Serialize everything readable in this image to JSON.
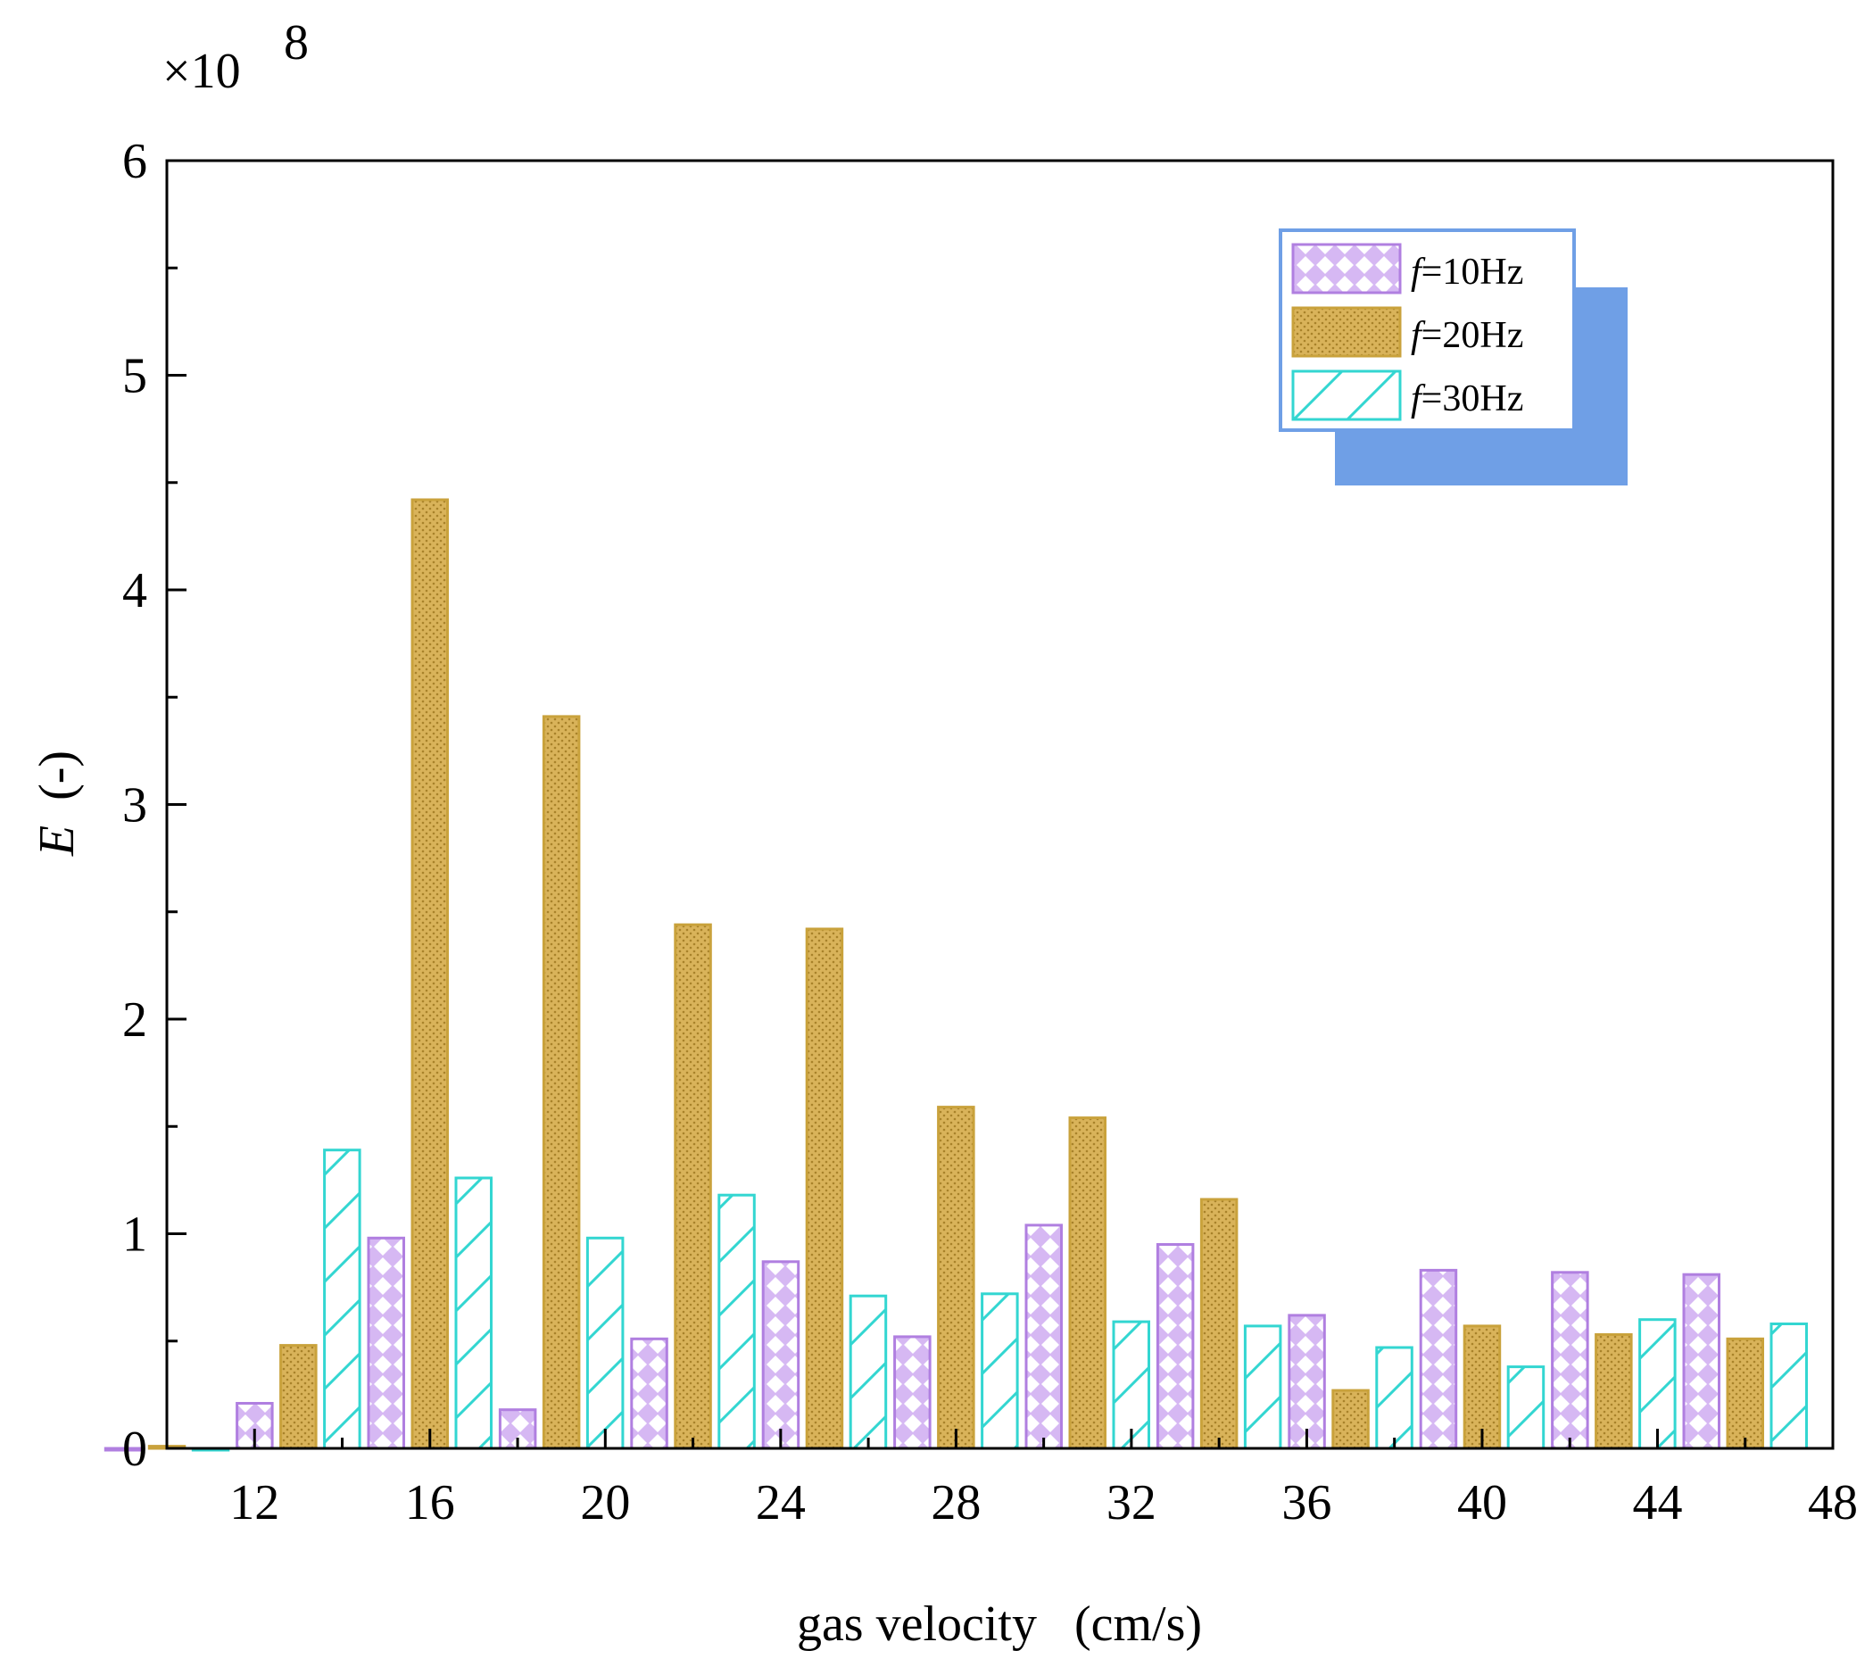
{
  "chart_data": {
    "type": "bar",
    "title": "",
    "xlabel": "gas velocity (cm/s)",
    "xlabel_parts": {
      "main": "gas velocity",
      "units": "(cm/s)"
    },
    "ylabel": "E (-)",
    "ylabel_parts": {
      "symbol": "E",
      "units": "(-)"
    },
    "multiplier": {
      "base": "×10",
      "exponent": "8"
    },
    "ylim": [
      0,
      6
    ],
    "yticks": [
      "0",
      "1",
      "2",
      "3",
      "4",
      "5",
      "6"
    ],
    "xlim": [
      10,
      48
    ],
    "xticks": [
      "12",
      "16",
      "20",
      "24",
      "28",
      "32",
      "36",
      "40",
      "44",
      "48"
    ],
    "categories": [
      "10",
      "13",
      "16",
      "19",
      "22",
      "25",
      "28",
      "31",
      "34",
      "37",
      "40",
      "43",
      "46"
    ],
    "series": [
      {
        "name": "f=10Hz",
        "legend_symbol": "f",
        "legend_rest": "=10Hz",
        "values": [
          0,
          0.21,
          0.98,
          0.18,
          0.51,
          0.87,
          0.52,
          1.04,
          0.95,
          0.62,
          0.83,
          0.82,
          0.81
        ]
      },
      {
        "name": "f=20Hz",
        "legend_symbol": "f",
        "legend_rest": "=20Hz",
        "values": [
          0.01,
          0.48,
          4.42,
          3.41,
          2.44,
          2.42,
          1.59,
          1.54,
          1.16,
          0.27,
          0.57,
          0.53,
          0.51
        ]
      },
      {
        "name": "f=30Hz",
        "legend_symbol": "f",
        "legend_rest": "=30Hz",
        "values": [
          0,
          1.39,
          1.26,
          0.98,
          1.18,
          0.71,
          0.72,
          0.59,
          0.57,
          0.47,
          0.38,
          0.6,
          0.58
        ]
      }
    ],
    "legend_position": "top-right",
    "colors": {
      "f10_stroke": "#b07fe0",
      "f10_fill": "#d6b8f3",
      "f20_stroke": "#c9a23c",
      "f20_fill": "#d9b35a",
      "f30_stroke": "#33d6d1",
      "shadow": "#6f9fe6",
      "legend_border": "#6f9fe6"
    }
  }
}
